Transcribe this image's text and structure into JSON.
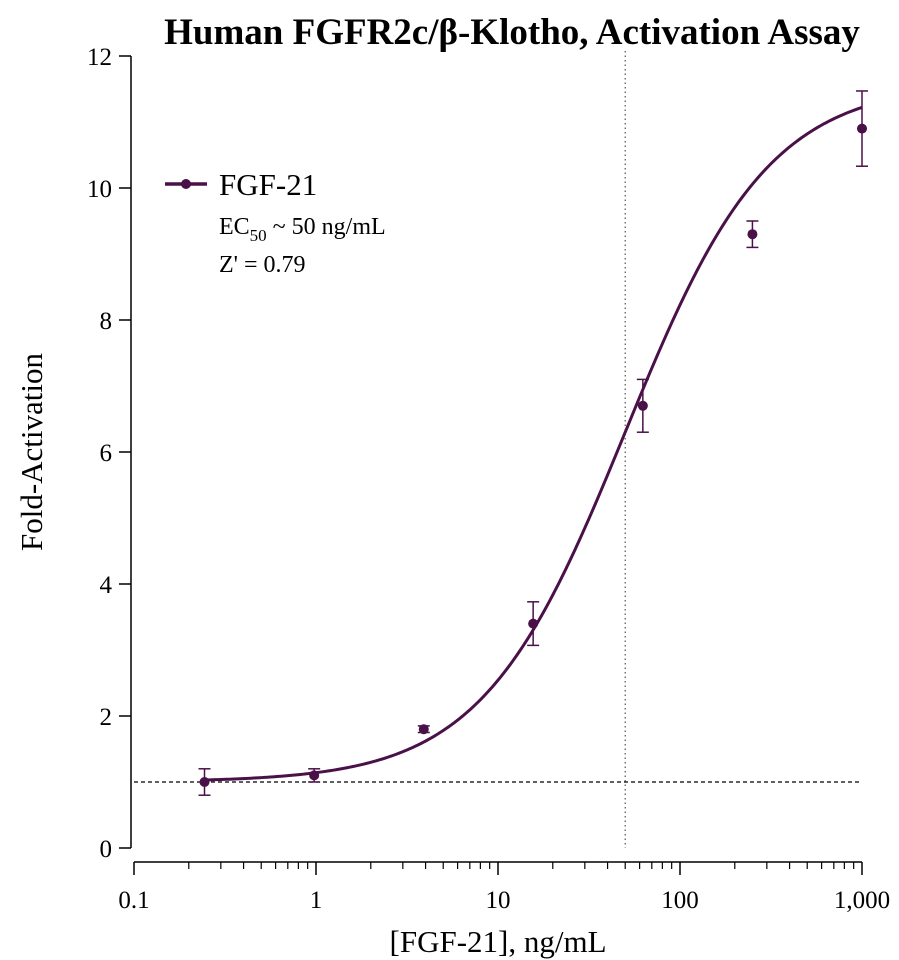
{
  "chart_data": {
    "type": "scatter",
    "title": "Human FGFR2c/β-Klotho, Activation Assay",
    "xlabel": "[FGF-21], ng/mL",
    "ylabel": "Fold-Activation",
    "xscale": "log",
    "xlim": [
      0.1,
      1000
    ],
    "ylim": [
      0,
      12
    ],
    "x_ticks": [
      0.1,
      1,
      10,
      100,
      1000
    ],
    "x_tick_labels": [
      "0.1",
      "1",
      "10",
      "100",
      "1,000"
    ],
    "y_ticks": [
      0,
      2,
      4,
      6,
      8,
      10,
      12
    ],
    "y_tick_labels": [
      "0",
      "2",
      "4",
      "6",
      "8",
      "10",
      "12"
    ],
    "grid": false,
    "legend_position": "top-left",
    "color": "#4a1048",
    "series": [
      {
        "name": "FGF-21",
        "x": [
          0.244,
          0.977,
          3.91,
          15.6,
          62.5,
          250,
          1000
        ],
        "y": [
          1.0,
          1.1,
          1.8,
          3.4,
          6.7,
          9.3,
          10.9
        ],
        "error": [
          0.2,
          0.1,
          0.05,
          0.33,
          0.4,
          0.2,
          0.57
        ]
      }
    ],
    "fit": {
      "model": "four-parameter logistic",
      "bottom": 1.0,
      "top": 11.6,
      "ec50": 50,
      "hill": 1.1
    },
    "reference_lines": [
      {
        "orientation": "horizontal",
        "value": 1,
        "style": "dashed"
      },
      {
        "orientation": "vertical",
        "value": 50,
        "style": "dotted"
      }
    ],
    "annotations": {
      "ec50_prefix": "EC",
      "ec50_subscript": "50",
      "ec50_suffix": " ~ 50 ng/mL",
      "z_prime": "Z' = 0.79"
    }
  }
}
